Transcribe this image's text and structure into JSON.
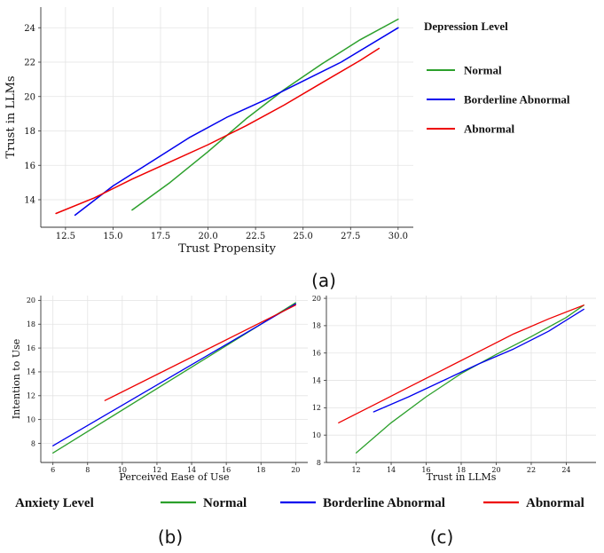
{
  "chart_data": [
    {
      "id": "a",
      "type": "line",
      "caption": "(a)",
      "title": "",
      "xlabel": "Trust Propensity",
      "ylabel": "Trust in LLMs",
      "xlim": [
        11.2,
        30.8
      ],
      "ylim": [
        12.4,
        25.2
      ],
      "xticks": [
        "12.5",
        "15.0",
        "17.5",
        "20.0",
        "22.5",
        "25.0",
        "27.5",
        "30.0"
      ],
      "xtick_values": [
        12.5,
        15,
        17.5,
        20,
        22.5,
        25,
        27.5,
        30
      ],
      "yticks": [
        "14",
        "16",
        "18",
        "20",
        "22",
        "24"
      ],
      "ytick_values": [
        14,
        16,
        18,
        20,
        22,
        24
      ],
      "grid": true,
      "legend": {
        "title": "Depression Level",
        "placement": "right",
        "entries": [
          "Normal",
          "Borderline Abnormal",
          "Abnormal"
        ]
      },
      "series": [
        {
          "name": "Normal",
          "color": "#2ca02c",
          "points": [
            [
              16,
              13.4
            ],
            [
              18,
              15.0
            ],
            [
              20,
              16.8
            ],
            [
              22,
              18.7
            ],
            [
              24,
              20.4
            ],
            [
              26,
              21.9
            ],
            [
              28,
              23.3
            ],
            [
              30,
              24.5
            ]
          ]
        },
        {
          "name": "Borderline Abnormal",
          "color": "#0000ee",
          "points": [
            [
              13,
              13.1
            ],
            [
              15,
              14.8
            ],
            [
              17,
              16.2
            ],
            [
              19,
              17.6
            ],
            [
              21,
              18.8
            ],
            [
              23,
              19.8
            ],
            [
              25,
              20.9
            ],
            [
              27,
              22.0
            ],
            [
              30,
              24.0
            ]
          ]
        },
        {
          "name": "Abnormal",
          "color": "#ee0000",
          "points": [
            [
              12,
              13.2
            ],
            [
              14,
              14.1
            ],
            [
              16,
              15.2
            ],
            [
              18,
              16.2
            ],
            [
              20,
              17.2
            ],
            [
              22,
              18.3
            ],
            [
              24,
              19.5
            ],
            [
              26,
              20.8
            ],
            [
              28,
              22.1
            ],
            [
              29,
              22.8
            ]
          ]
        }
      ]
    },
    {
      "id": "b",
      "type": "line",
      "caption": "(b)",
      "title": "",
      "xlabel": "Perceived Ease of Use",
      "ylabel": "Intention to Use",
      "xlim": [
        5.3,
        20.7
      ],
      "ylim": [
        6.4,
        20.4
      ],
      "xticks": [
        "6",
        "8",
        "10",
        "12",
        "14",
        "16",
        "18",
        "20"
      ],
      "xtick_values": [
        6,
        8,
        10,
        12,
        14,
        16,
        18,
        20
      ],
      "yticks": [
        "8",
        "10",
        "12",
        "14",
        "16",
        "18",
        "20"
      ],
      "ytick_values": [
        8,
        10,
        12,
        14,
        16,
        18,
        20
      ],
      "grid": true,
      "series": [
        {
          "name": "Normal",
          "color": "#2ca02c",
          "points": [
            [
              6,
              7.2
            ],
            [
              20,
              19.8
            ]
          ]
        },
        {
          "name": "Borderline Abnormal",
          "color": "#0000ee",
          "points": [
            [
              6,
              7.8
            ],
            [
              20,
              19.7
            ]
          ]
        },
        {
          "name": "Abnormal",
          "color": "#ee0000",
          "points": [
            [
              9,
              11.6
            ],
            [
              20,
              19.6
            ]
          ]
        }
      ]
    },
    {
      "id": "c",
      "type": "line",
      "caption": "(c)",
      "title": "",
      "xlabel": "Trust in LLMs",
      "ylabel": "",
      "xlim": [
        10.3,
        25.7
      ],
      "ylim": [
        8.0,
        20.2
      ],
      "xticks": [
        "12",
        "14",
        "16",
        "18",
        "20",
        "22",
        "24"
      ],
      "xtick_values": [
        12,
        14,
        16,
        18,
        20,
        22,
        24
      ],
      "yticks": [
        "8",
        "10",
        "12",
        "14",
        "16",
        "18",
        "20"
      ],
      "ytick_values": [
        8,
        10,
        12,
        14,
        16,
        18,
        20
      ],
      "grid": true,
      "series": [
        {
          "name": "Normal",
          "color": "#2ca02c",
          "points": [
            [
              12,
              8.7
            ],
            [
              14,
              10.9
            ],
            [
              16,
              12.8
            ],
            [
              18,
              14.5
            ],
            [
              20,
              15.9
            ],
            [
              22,
              17.2
            ],
            [
              24,
              18.6
            ],
            [
              25,
              19.5
            ]
          ]
        },
        {
          "name": "Borderline Abnormal",
          "color": "#0000ee",
          "points": [
            [
              13,
              11.7
            ],
            [
              15,
              12.8
            ],
            [
              17,
              14.0
            ],
            [
              19,
              15.2
            ],
            [
              21,
              16.3
            ],
            [
              23,
              17.6
            ],
            [
              25,
              19.2
            ]
          ]
        },
        {
          "name": "Abnormal",
          "color": "#ee0000",
          "points": [
            [
              11,
              10.9
            ],
            [
              13,
              12.2
            ],
            [
              15,
              13.5
            ],
            [
              17,
              14.8
            ],
            [
              19,
              16.1
            ],
            [
              21,
              17.4
            ],
            [
              23,
              18.5
            ],
            [
              25,
              19.5
            ]
          ]
        }
      ]
    }
  ],
  "shared_legend": {
    "title": "Anxiety Level",
    "entries": [
      {
        "label": "Normal",
        "color": "#2ca02c"
      },
      {
        "label": "Borderline Abnormal",
        "color": "#0000ee"
      },
      {
        "label": "Abnormal",
        "color": "#ee0000"
      }
    ]
  }
}
